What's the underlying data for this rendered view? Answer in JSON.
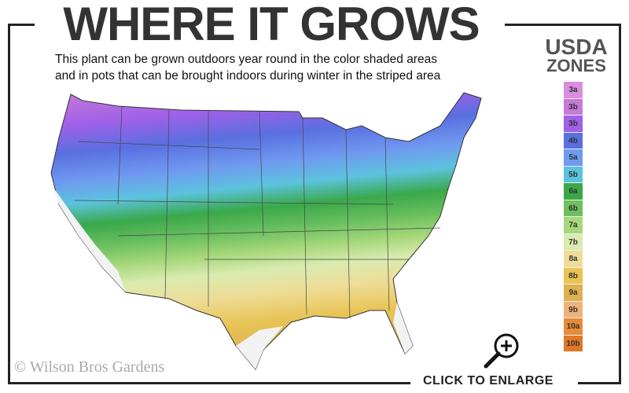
{
  "title": "WHERE IT GROWS",
  "subtitle_lines": [
    "This plant can be grown outdoors year round in the color shaded areas",
    "and in pots that can be brought indoors during winter in the striped area"
  ],
  "legend": {
    "title_line1": "USDA",
    "title_line2": "ZONES",
    "zones": [
      {
        "label": "3a",
        "color": "#d98ee0"
      },
      {
        "label": "3b",
        "color": "#c77ad8"
      },
      {
        "label": "3b",
        "color": "#a060e8"
      },
      {
        "label": "4b",
        "color": "#5a6fe0"
      },
      {
        "label": "5a",
        "color": "#6f9af0"
      },
      {
        "label": "5b",
        "color": "#5cc3de"
      },
      {
        "label": "6a",
        "color": "#3aa84a"
      },
      {
        "label": "6b",
        "color": "#6cc060"
      },
      {
        "label": "7a",
        "color": "#a6d77a"
      },
      {
        "label": "7b",
        "color": "#d9ebb0"
      },
      {
        "label": "8a",
        "color": "#eedd98"
      },
      {
        "label": "8b",
        "color": "#e8c455"
      },
      {
        "label": "9a",
        "color": "#ddb050"
      },
      {
        "label": "9b",
        "color": "#f0b27a"
      },
      {
        "label": "10a",
        "color": "#e88a38"
      },
      {
        "label": "10b",
        "color": "#e07828"
      }
    ]
  },
  "copyright": "© Wilson Bros Gardens",
  "enlarge_label": "CLICK TO ENLARGE",
  "icons": {
    "enlarge": "zoom-in-icon"
  }
}
